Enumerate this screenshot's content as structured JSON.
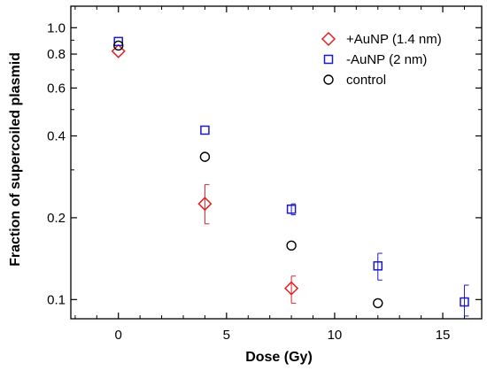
{
  "chart_data": {
    "type": "scatter",
    "xlabel": "Dose  (Gy)",
    "ylabel": "Fraction of supercoiled plasmid",
    "xlim": [
      -2.2,
      16.8
    ],
    "ylim": [
      0.085,
      1.2
    ],
    "yscale": "log",
    "xticks": [
      0,
      5,
      10,
      15
    ],
    "yticks": [
      0.1,
      0.2,
      0.4,
      0.6,
      0.8,
      1.0
    ],
    "ytick_labels": [
      "0.1",
      "0.2",
      "0.4",
      "0.6",
      "0.8",
      "1.0"
    ],
    "grid": false,
    "legend_position": "top-right",
    "series": [
      {
        "name": "+AuNP (1.4 nm)",
        "marker": "diamond",
        "color": "#e02020",
        "points": [
          {
            "x": 0,
            "y": 0.82
          },
          {
            "x": 4,
            "y": 0.225,
            "ylo": 0.19,
            "yhi": 0.265
          },
          {
            "x": 8,
            "y": 0.11,
            "ylo": 0.097,
            "yhi": 0.122
          }
        ]
      },
      {
        "name": "-AuNP (2 nm)",
        "marker": "square",
        "color": "#1a1acc",
        "points": [
          {
            "x": 0,
            "y": 0.89
          },
          {
            "x": 4,
            "y": 0.42
          },
          {
            "x": 8,
            "y": 0.215,
            "ylo": 0.205,
            "yhi": 0.225
          },
          {
            "x": 12,
            "y": 0.133,
            "ylo": 0.118,
            "yhi": 0.148
          },
          {
            "x": 16,
            "y": 0.098,
            "ylo": 0.087,
            "yhi": 0.113
          }
        ]
      },
      {
        "name": "control",
        "marker": "circle",
        "color": "#000000",
        "points": [
          {
            "x": 0,
            "y": 0.86
          },
          {
            "x": 4,
            "y": 0.335
          },
          {
            "x": 8,
            "y": 0.158
          },
          {
            "x": 12,
            "y": 0.097
          }
        ]
      }
    ]
  }
}
